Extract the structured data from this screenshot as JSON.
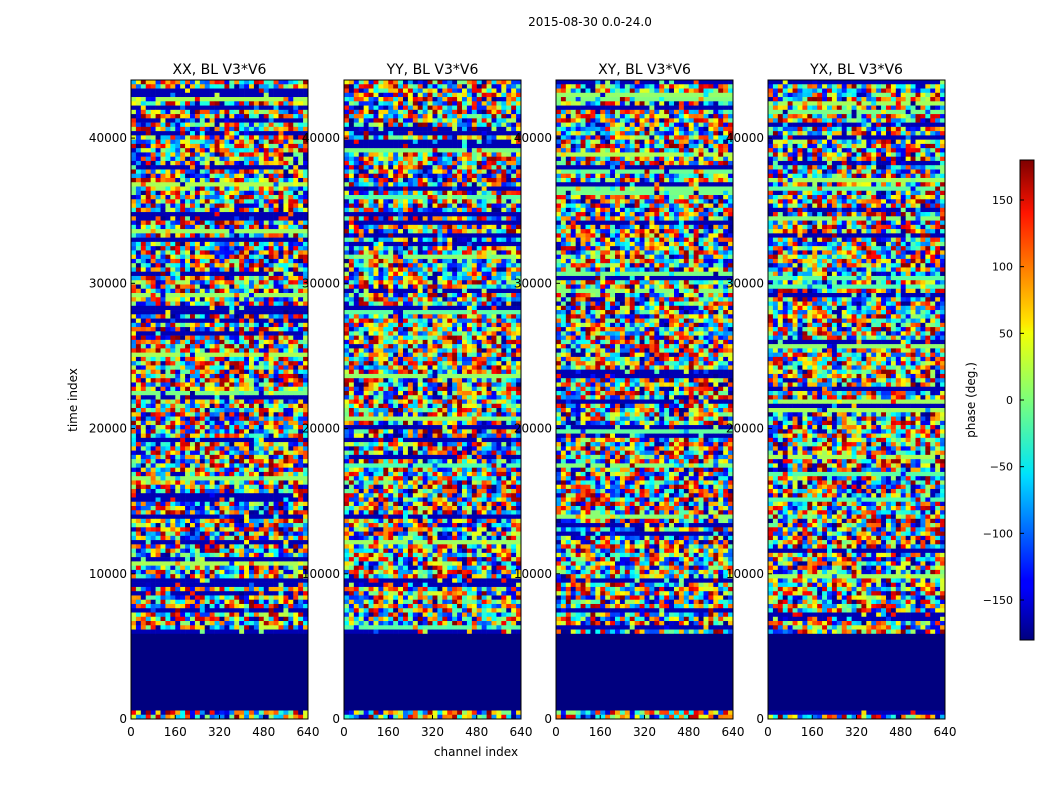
{
  "chart_data": {
    "type": "heatmap",
    "title": "2015-08-30 0.0-24.0",
    "xlabel": "channel index",
    "ylabel": "time index",
    "panels": [
      {
        "title": "XX, BL V3*V6",
        "xlim": [
          0,
          640
        ],
        "ylim": [
          0,
          44000
        ]
      },
      {
        "title": "YY, BL V3*V6",
        "xlim": [
          0,
          640
        ],
        "ylim": [
          0,
          44000
        ]
      },
      {
        "title": "XY, BL V3*V6",
        "xlim": [
          0,
          640
        ],
        "ylim": [
          0,
          44000
        ]
      },
      {
        "title": "YX, BL V3*V6",
        "xlim": [
          0,
          640
        ],
        "ylim": [
          0,
          44000
        ]
      }
    ],
    "xticks": [
      "0",
      "160",
      "320",
      "480",
      "640"
    ],
    "xtick_values": [
      0,
      160,
      320,
      480,
      640
    ],
    "yticks": [
      "0",
      "10000",
      "20000",
      "30000",
      "40000"
    ],
    "ytick_values": [
      0,
      10000,
      20000,
      30000,
      40000
    ],
    "colorbar": {
      "label": "phase (deg.)",
      "range": [
        -180,
        180
      ],
      "ticks": [
        "−150",
        "−100",
        "−50",
        "0",
        "50",
        "100",
        "150"
      ],
      "tick_values": [
        -150,
        -100,
        -50,
        0,
        50,
        100,
        150
      ],
      "colormap": "jet"
    },
    "flagged_block": {
      "time_range": [
        600,
        5800
      ],
      "value": -180,
      "color": "#00007f"
    }
  }
}
